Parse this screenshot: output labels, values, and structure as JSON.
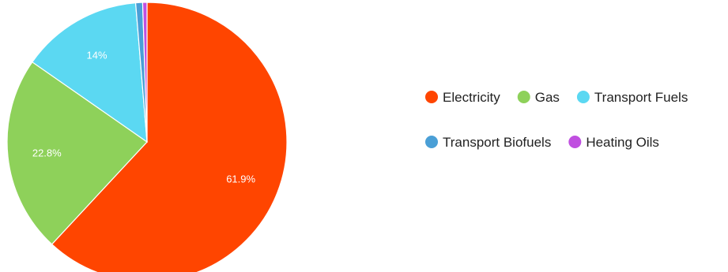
{
  "chart_data": {
    "type": "pie",
    "categories": [
      "Electricity",
      "Gas",
      "Transport Fuels",
      "Transport Biofuels",
      "Heating Oils"
    ],
    "values": [
      61.9,
      22.8,
      14,
      0.8,
      0.5
    ],
    "data_labels": [
      "61.9%",
      "22.8%",
      "14%",
      "",
      ""
    ],
    "colors": [
      "#ff4500",
      "#8ed15a",
      "#5bd8f2",
      "#4a9fd6",
      "#c04fe0"
    ],
    "title": "",
    "legend_position": "right"
  }
}
